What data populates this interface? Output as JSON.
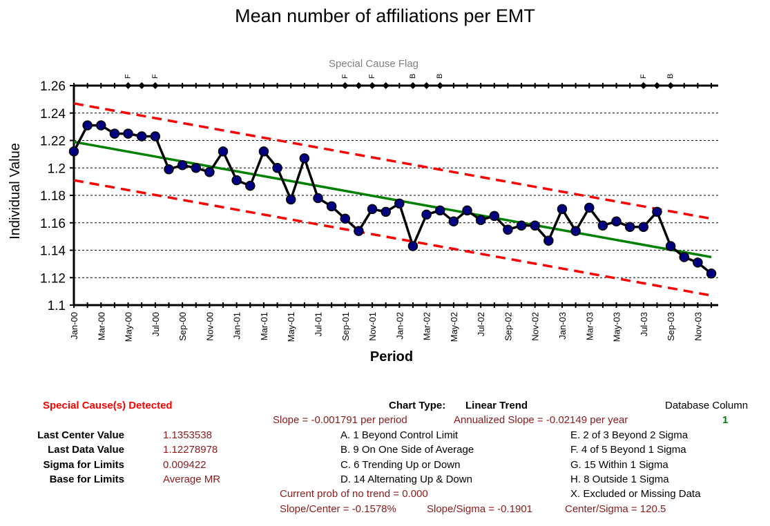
{
  "chart_data": {
    "type": "line",
    "title": "Mean number of affiliations per EMT",
    "xlabel": "Period",
    "ylabel": "Individual Value",
    "flag_label": "Special Cause Flag",
    "ylim": [
      1.1,
      1.26
    ],
    "yticks": [
      1.1,
      1.12,
      1.14,
      1.16,
      1.18,
      1.2,
      1.22,
      1.24,
      1.26
    ],
    "ytick_labels": [
      "1.1",
      "1.12",
      "1.14",
      "1.16",
      "1.18",
      "1.2",
      "1.22",
      "1.24",
      "1.26"
    ],
    "periods": [
      "Jan-00",
      "Feb-00",
      "Mar-00",
      "Apr-00",
      "May-00",
      "Jun-00",
      "Jul-00",
      "Aug-00",
      "Sep-00",
      "Oct-00",
      "Nov-00",
      "Dec-00",
      "Jan-01",
      "Feb-01",
      "Mar-01",
      "Apr-01",
      "May-01",
      "Jun-01",
      "Jul-01",
      "Aug-01",
      "Sep-01",
      "Oct-01",
      "Nov-01",
      "Dec-01",
      "Jan-02",
      "Feb-02",
      "Mar-02",
      "Apr-02",
      "May-02",
      "Jun-02",
      "Jul-02",
      "Aug-02",
      "Sep-02",
      "Oct-02",
      "Nov-02",
      "Dec-02",
      "Jan-03",
      "Feb-03",
      "Mar-03",
      "Apr-03",
      "May-03",
      "Jun-03",
      "Jul-03",
      "Aug-03",
      "Sep-03",
      "Oct-03",
      "Nov-03",
      "Dec-03"
    ],
    "tick_labels": [
      "Jan-00",
      "Mar-00",
      "May-00",
      "Jul-00",
      "Sep-00",
      "Nov-00",
      "Jan-01",
      "Mar-01",
      "May-01",
      "Jul-01",
      "Sep-01",
      "Nov-01",
      "Jan-02",
      "Mar-02",
      "May-02",
      "Jul-02",
      "Sep-02",
      "Nov-02",
      "Jan-03",
      "Mar-03",
      "May-03",
      "Jul-03",
      "Sep-03",
      "Nov-03"
    ],
    "values": [
      1.212,
      1.231,
      1.231,
      1.225,
      1.225,
      1.223,
      1.223,
      1.199,
      1.202,
      1.2,
      1.197,
      1.212,
      1.191,
      1.187,
      1.212,
      1.2,
      1.177,
      1.207,
      1.178,
      1.172,
      1.163,
      1.154,
      1.17,
      1.168,
      1.174,
      1.143,
      1.166,
      1.169,
      1.161,
      1.169,
      1.162,
      1.165,
      1.155,
      1.158,
      1.158,
      1.147,
      1.17,
      1.154,
      1.171,
      1.158,
      1.161,
      1.157,
      1.157,
      1.168,
      1.143,
      1.135,
      1.131,
      1.123
    ],
    "center_line": {
      "start": 1.219,
      "end": 1.135,
      "color": "#008000"
    },
    "upper_limit": {
      "start": 1.247,
      "end": 1.163,
      "color": "#ff0000"
    },
    "lower_limit": {
      "start": 1.191,
      "end": 1.107,
      "color": "#ff0000"
    },
    "flag_markers": [
      4,
      5,
      6,
      20,
      21,
      22,
      23,
      25,
      26,
      27,
      42,
      43,
      44
    ],
    "flag_letters": [
      {
        "index": 4,
        "letter": "F"
      },
      {
        "index": 6,
        "letter": "F"
      },
      {
        "index": 20,
        "letter": "F"
      },
      {
        "index": 22,
        "letter": "F"
      },
      {
        "index": 25,
        "letter": "B"
      },
      {
        "index": 27,
        "letter": "B"
      },
      {
        "index": 42,
        "letter": "F"
      },
      {
        "index": 44,
        "letter": "B"
      }
    ],
    "grid": true,
    "colors": {
      "data_line": "#000000",
      "marker_fill": "#000080",
      "center": "#008000",
      "limits": "#ff0000"
    }
  },
  "info": {
    "special_cause": "Special Cause(s) Detected",
    "chart_type_label": "Chart Type:",
    "chart_type_value": "Linear Trend",
    "database_column_label": "Database Column",
    "database_column_value": "1",
    "slope": "Slope = -0.001791 per period",
    "annualized_slope": "Annualized Slope = -0.02149 per year",
    "last_center_label": "Last Center Value",
    "last_center_value": "1.1353538",
    "last_data_label": "Last Data Value",
    "last_data_value": "1.12278978",
    "sigma_label": "Sigma for Limits",
    "sigma_value": "0.009422",
    "base_label": "Base for Limits",
    "base_value": "Average MR",
    "rule_a": "A.  1 Beyond Control Limit",
    "rule_b": "B.  9 On One Side of Average",
    "rule_c": "C.  6 Trending Up or Down",
    "rule_d": "D.  14 Alternating  Up & Down",
    "rule_e": "E.  2 of 3 Beyond 2 Sigma",
    "rule_f": "F.  4 of 5 Beyond 1 Sigma",
    "rule_g": "G.  15 Within 1 Sigma",
    "rule_h": "H.  8 Outside 1 Sigma",
    "rule_x": "X.  Excluded or Missing Data",
    "prob_no_trend": "Current prob of no trend = 0.000",
    "slope_center": "Slope/Center = -0.1578%",
    "slope_sigma": "Slope/Sigma = -0.1901",
    "center_sigma": "Center/Sigma = 120.5"
  }
}
